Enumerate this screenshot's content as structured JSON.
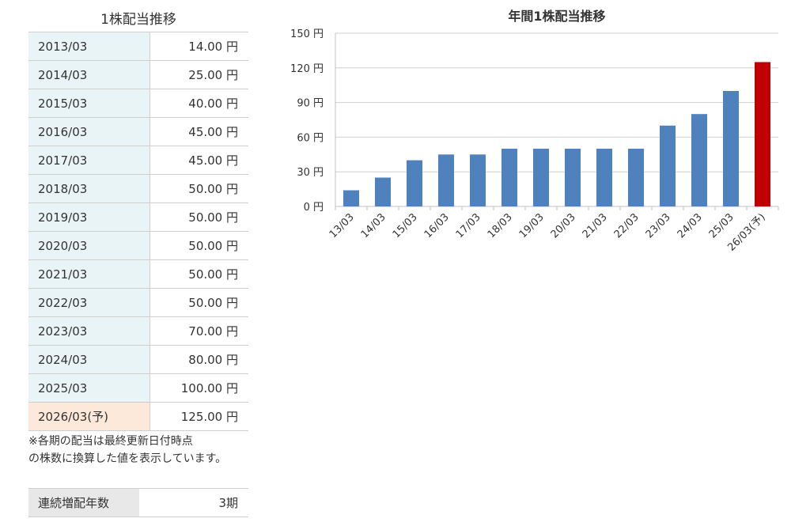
{
  "table": {
    "title": "1株配当推移",
    "rows": [
      {
        "period": "2013/03",
        "value": "14.00 円"
      },
      {
        "period": "2014/03",
        "value": "25.00 円"
      },
      {
        "period": "2015/03",
        "value": "40.00 円"
      },
      {
        "period": "2016/03",
        "value": "45.00 円"
      },
      {
        "period": "2017/03",
        "value": "45.00 円"
      },
      {
        "period": "2018/03",
        "value": "50.00 円"
      },
      {
        "period": "2019/03",
        "value": "50.00 円"
      },
      {
        "period": "2020/03",
        "value": "50.00 円"
      },
      {
        "period": "2021/03",
        "value": "50.00 円"
      },
      {
        "period": "2022/03",
        "value": "50.00 円"
      },
      {
        "period": "2023/03",
        "value": "70.00 円"
      },
      {
        "period": "2024/03",
        "value": "80.00 円"
      },
      {
        "period": "2025/03",
        "value": "100.00 円"
      },
      {
        "period": "2026/03(予)",
        "value": "125.00 円"
      }
    ],
    "note_line1": "※各期の配当は最終更新日付時点",
    "note_line2": "の株数に換算した値を表示しています。"
  },
  "streak": {
    "label": "連続増配年数",
    "value": "3期"
  },
  "colors": {
    "bar": "#4f81bd",
    "forecast_bar": "#c00000",
    "forecast_row_bg": "#fde9d9",
    "row_label_bg": "#e9f4f6"
  },
  "chart_data": {
    "type": "bar",
    "title": "年間1株配当推移",
    "categories": [
      "13/03",
      "14/03",
      "15/03",
      "16/03",
      "17/03",
      "18/03",
      "19/03",
      "20/03",
      "21/03",
      "22/03",
      "23/03",
      "24/03",
      "25/03",
      "26/03(予)"
    ],
    "values": [
      14,
      25,
      40,
      45,
      45,
      50,
      50,
      50,
      50,
      50,
      70,
      80,
      100,
      125
    ],
    "ylim": [
      0,
      150
    ],
    "yticks": [
      0,
      30,
      60,
      90,
      120,
      150
    ],
    "ytick_labels": [
      "0 円",
      "30 円",
      "60 円",
      "90 円",
      "120 円",
      "150 円"
    ],
    "highlight_index": 13,
    "grid": true
  }
}
